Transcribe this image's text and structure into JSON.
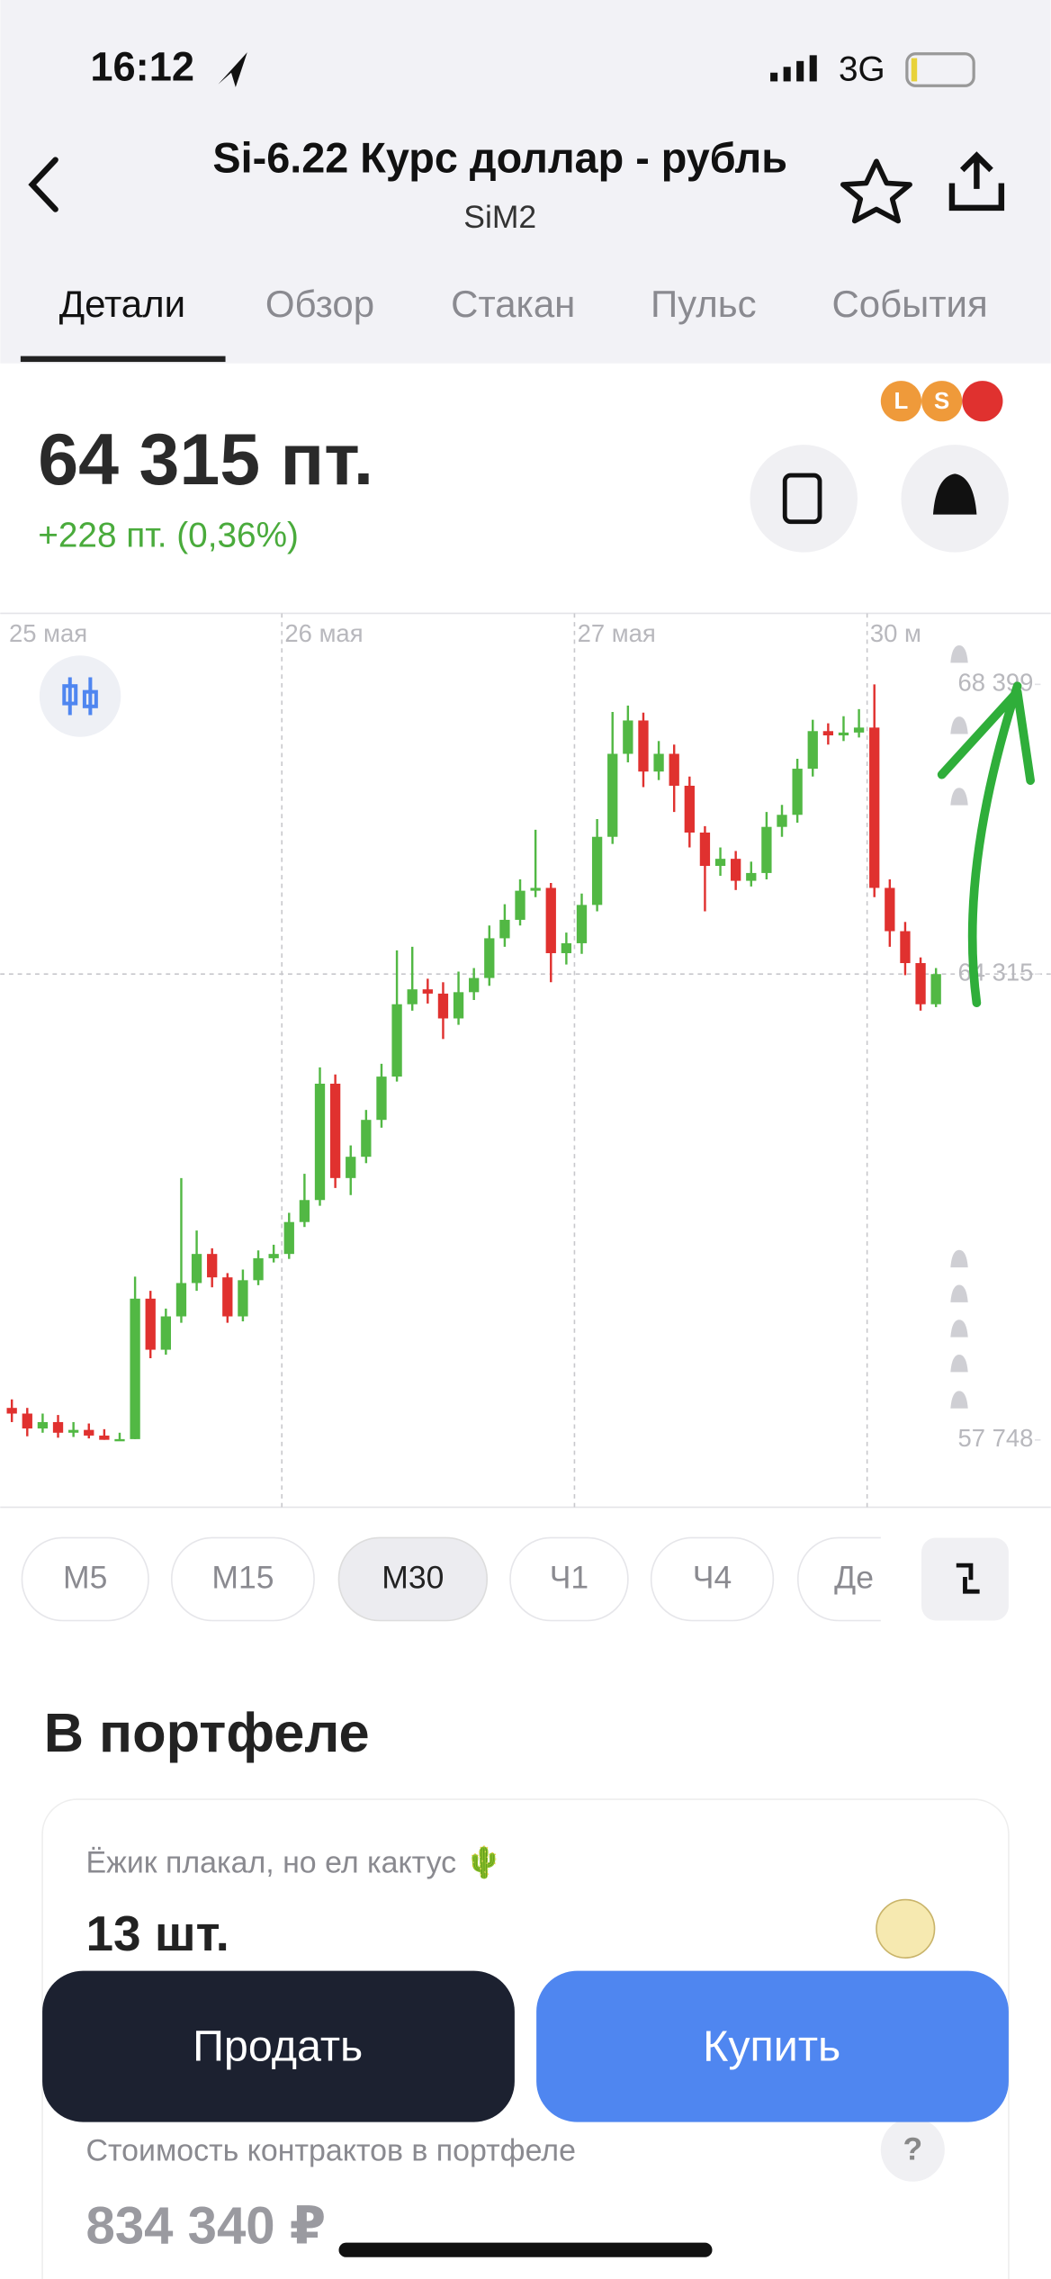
{
  "status_bar": {
    "time": "16:12",
    "network": "3G"
  },
  "header": {
    "title": "Si-6.22 Курс доллар - рубль",
    "subtitle": "SiM2"
  },
  "tabs": [
    "Детали",
    "Обзор",
    "Стакан",
    "Пульс",
    "События"
  ],
  "badges": [
    "L",
    "S"
  ],
  "price": {
    "value": "64 315 пт.",
    "change": "+228 пт. (0,36%)"
  },
  "chart_data": {
    "type": "candlestick",
    "categories": [
      "25 мая",
      null,
      null,
      null,
      null,
      null,
      null,
      null,
      null,
      null,
      null,
      null,
      null,
      null,
      null,
      null,
      null,
      null,
      "26 мая",
      null,
      null,
      null,
      null,
      null,
      null,
      null,
      null,
      null,
      null,
      null,
      null,
      null,
      null,
      null,
      null,
      null,
      null,
      "27 мая",
      null,
      null,
      null,
      null,
      null,
      null,
      null,
      null,
      null,
      null,
      null,
      null,
      null,
      null,
      null,
      null,
      null,
      null,
      "30 м",
      null,
      null,
      null,
      null
    ],
    "open": [
      58200,
      58120,
      57910,
      58000,
      57850,
      57890,
      57810,
      57750,
      57760,
      59740,
      59020,
      59490,
      59960,
      60370,
      60040,
      59490,
      60000,
      60310,
      60370,
      60820,
      61130,
      62770,
      61440,
      61740,
      62260,
      62870,
      63890,
      64100,
      64040,
      63690,
      64060,
      64260,
      64820,
      65080,
      65490,
      65530,
      64610,
      64750,
      65290,
      66250,
      67420,
      67890,
      67170,
      67420,
      66970,
      66310,
      65840,
      65940,
      65630,
      65740,
      66390,
      66560,
      67210,
      67740,
      67680,
      67720,
      67790,
      65530,
      64920,
      64470,
      63890
    ],
    "high": [
      58320,
      58200,
      58120,
      58100,
      58000,
      57980,
      57900,
      57850,
      60050,
      59850,
      59600,
      61440,
      60700,
      60450,
      60100,
      60150,
      60420,
      60500,
      60950,
      61500,
      63000,
      62900,
      61900,
      62400,
      63050,
      64650,
      64700,
      64250,
      64200,
      64350,
      64400,
      65000,
      65300,
      65650,
      66350,
      65600,
      64900,
      65450,
      66500,
      68010,
      68100,
      68000,
      67600,
      67550,
      67100,
      66400,
      66100,
      66050,
      65900,
      66600,
      66700,
      67350,
      67900,
      67850,
      67950,
      68050,
      68399,
      65650,
      65050,
      64550,
      64400
    ],
    "low": [
      58000,
      57800,
      57850,
      57780,
      57790,
      57770,
      57750,
      57748,
      57760,
      58900,
      58950,
      59400,
      59850,
      59900,
      59400,
      59420,
      59930,
      60250,
      60300,
      60750,
      61050,
      61300,
      61200,
      61650,
      62150,
      62800,
      63800,
      63900,
      63400,
      63600,
      63950,
      64150,
      64700,
      65000,
      65400,
      64200,
      64450,
      64600,
      65200,
      66150,
      67300,
      66950,
      67050,
      66600,
      66100,
      65200,
      65700,
      65500,
      65550,
      65650,
      66250,
      66450,
      67100,
      67550,
      67600,
      67650,
      65400,
      64700,
      64300,
      63800,
      63850
    ],
    "close": [
      58120,
      57910,
      58000,
      57850,
      57890,
      57810,
      57750,
      57760,
      59740,
      59020,
      59490,
      59960,
      60370,
      60040,
      59490,
      60000,
      60310,
      60370,
      60820,
      61130,
      62770,
      61440,
      61740,
      62260,
      62870,
      63890,
      64100,
      64040,
      63690,
      64060,
      64260,
      64820,
      65080,
      65490,
      65530,
      64610,
      64750,
      65290,
      66250,
      67420,
      67890,
      67170,
      67420,
      66970,
      66310,
      65840,
      65940,
      65630,
      65740,
      66390,
      66560,
      67210,
      67740,
      67680,
      67720,
      67790,
      65530,
      64920,
      64470,
      63890,
      64315
    ],
    "ylim": [
      56800,
      69400
    ],
    "yticks": [
      {
        "value": 68399,
        "label": "68 399"
      },
      {
        "value": 64315,
        "label": "64 315"
      },
      {
        "value": 57748,
        "label": "57 748"
      }
    ],
    "up_color": "#52b844",
    "down_color": "#e0312f",
    "last_price_line": true
  },
  "intervals": [
    "M5",
    "M15",
    "M30",
    "Ч1",
    "Ч4",
    "Де"
  ],
  "portfolio": {
    "title": "В портфеле",
    "account": "Ёжик плакал, но ел кактус 🌵",
    "quantity": "13 шт.",
    "value_label": "Стоимость контрактов в портфеле",
    "help": "?",
    "value": "834 340 ₽"
  },
  "buttons": {
    "sell": "Продать",
    "buy": "Купить"
  }
}
